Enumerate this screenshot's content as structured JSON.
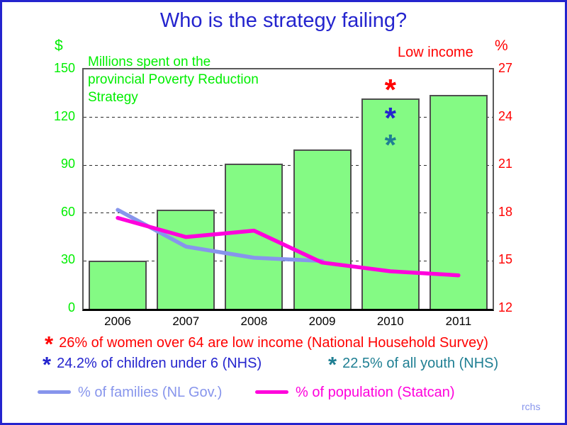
{
  "title": "Who is the strategy failing?",
  "bars_annotation": "Millions spent on the\nprovincial Poverty Reduction\nStrategy",
  "watermark": "rchs",
  "colors": {
    "blue": "#2424ce",
    "green": "#00ee00",
    "red": "#ff0000",
    "teal": "#1f7f93",
    "magenta": "#ff00dc",
    "periwinkle": "#8795ec",
    "bar_fill": "#84fa84",
    "bar_border": "#4f4f4f",
    "black": "#000000"
  },
  "chart_data": {
    "type": "combo-bar-line",
    "categories": [
      "2006",
      "2007",
      "2008",
      "2009",
      "2010",
      "2011"
    ],
    "bars": {
      "name": "Millions spent on the provincial Poverty Reduction Strategy",
      "axis": "left",
      "values": [
        30,
        62,
        91,
        100,
        132,
        134
      ]
    },
    "lines": [
      {
        "name": "% of families (NL Gov.)",
        "axis": "right",
        "color_key": "periwinkle",
        "categories": [
          "2006",
          "2007",
          "2008",
          "2009"
        ],
        "values": [
          18.2,
          15.9,
          15.2,
          15.0
        ]
      },
      {
        "name": "% of population (Statcan)",
        "axis": "right",
        "color_key": "magenta",
        "categories": [
          "2006",
          "2007",
          "2008",
          "2009",
          "2010",
          "2011"
        ],
        "values": [
          17.7,
          16.5,
          16.9,
          14.9,
          14.35,
          14.1
        ]
      }
    ],
    "markers": [
      {
        "label": "26% of women over 64 are low income (National Household Survey)",
        "value": 26,
        "axis": "right",
        "at_category": "2010",
        "color_key": "red"
      },
      {
        "label": "24.2% of children under 6 (NHS)",
        "value": 24.2,
        "axis": "right",
        "at_category": "2010",
        "color_key": "blue"
      },
      {
        "label": "22.5% of all youth (NHS)",
        "value": 22.5,
        "axis": "right",
        "at_category": "2010",
        "color_key": "teal"
      }
    ],
    "left_axis": {
      "unit": "$",
      "range": [
        0,
        150
      ],
      "ticks": [
        150,
        120,
        90,
        60,
        30,
        0
      ],
      "color_key": "green"
    },
    "right_axis": {
      "unit": "%",
      "title": "Low income",
      "range": [
        12,
        27
      ],
      "ticks": [
        27,
        24,
        21,
        18,
        15,
        12
      ],
      "color_key": "red"
    },
    "grid": {
      "horizontal_at_left_values": [
        30,
        60,
        90,
        120
      ],
      "style": "dashed"
    }
  },
  "legend": {
    "line_items": [
      {
        "label": "% of families (NL Gov.)",
        "color_key": "periwinkle"
      },
      {
        "label": "% of population (Statcan)",
        "color_key": "magenta"
      }
    ]
  }
}
